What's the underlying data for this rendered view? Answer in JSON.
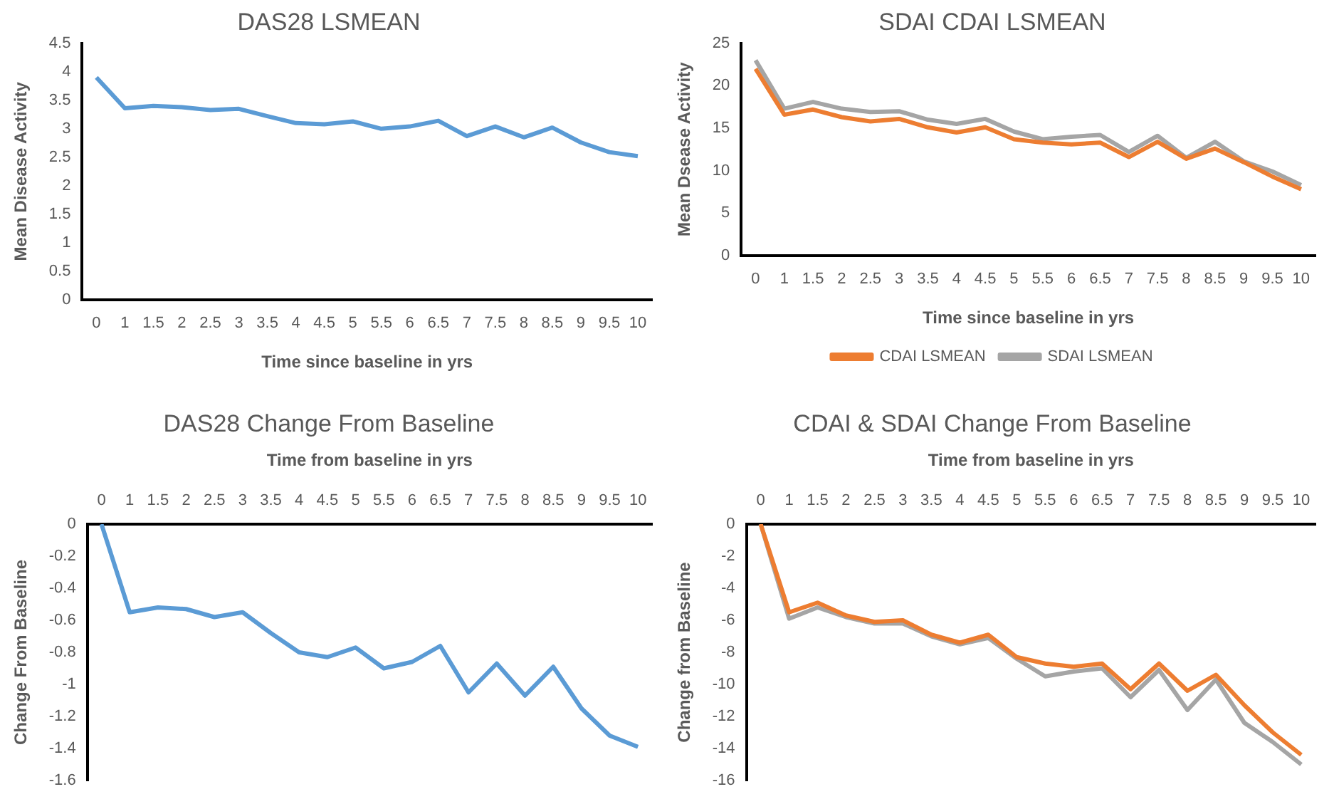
{
  "chart_data": [
    {
      "type": "line",
      "title": "DAS28 LSMEAN",
      "xlabel": "Time since baseline in yrs",
      "ylabel": "Mean Disease Activity",
      "categories": [
        "0",
        "1",
        "1.5",
        "2",
        "2.5",
        "3",
        "3.5",
        "4",
        "4.5",
        "5",
        "5.5",
        "6",
        "6.5",
        "7",
        "7.5",
        "8",
        "8.5",
        "9",
        "9.5",
        "10"
      ],
      "series": [
        {
          "color": "#5b9bd5",
          "values": [
            3.9,
            3.36,
            3.4,
            3.38,
            3.33,
            3.35,
            3.22,
            3.1,
            3.08,
            3.13,
            3.0,
            3.04,
            3.14,
            2.87,
            3.04,
            2.85,
            3.02,
            2.76,
            2.59,
            2.52
          ]
        }
      ],
      "ylim": [
        0,
        4.5
      ],
      "yticks": [
        0,
        0.5,
        1,
        1.5,
        2,
        2.5,
        3,
        3.5,
        4,
        4.5
      ],
      "grid": false,
      "legend": false,
      "marker": "none",
      "line_style": "solid"
    },
    {
      "type": "line",
      "title": "SDAI CDAI LSMEAN",
      "xlabel": "Time since baseline in yrs",
      "ylabel": "Mean Dsease Activity",
      "categories": [
        "0",
        "1",
        "1.5",
        "2",
        "2.5",
        "3",
        "3.5",
        "4",
        "4.5",
        "5",
        "5.5",
        "6",
        "6.5",
        "7",
        "7.5",
        "8",
        "8.5",
        "9",
        "9.5",
        "10"
      ],
      "series": [
        {
          "name": "CDAI LSMEAN",
          "color": "#ed7d31",
          "values": [
            22,
            16.6,
            17.2,
            16.3,
            15.8,
            16.1,
            15.1,
            14.5,
            15.1,
            13.7,
            13.3,
            13.1,
            13.3,
            11.6,
            13.4,
            11.4,
            12.6,
            11.0,
            9.3,
            7.8
          ]
        },
        {
          "name": "SDAI LSMEAN",
          "color": "#a5a5a5",
          "values": [
            23,
            17.3,
            18.1,
            17.3,
            16.9,
            17.0,
            16.0,
            15.5,
            16.1,
            14.6,
            13.7,
            14.0,
            14.2,
            12.2,
            14.1,
            11.5,
            13.4,
            11.1,
            9.9,
            8.3
          ]
        }
      ],
      "ylim": [
        0,
        25
      ],
      "yticks": [
        0,
        5,
        10,
        15,
        20,
        25
      ],
      "grid": false,
      "legend": "bottom",
      "marker": "none",
      "line_style": "solid"
    },
    {
      "type": "line",
      "title": "DAS28 Change From Baseline",
      "xlabel": "Time from baseline in yrs",
      "ylabel": "Change From Baseline",
      "categories": [
        "0",
        "1",
        "1.5",
        "2",
        "2.5",
        "3",
        "3.5",
        "4",
        "4.5",
        "5",
        "5.5",
        "6",
        "6.5",
        "7",
        "7.5",
        "8",
        "8.5",
        "9",
        "9.5",
        "10"
      ],
      "series": [
        {
          "color": "#5b9bd5",
          "values": [
            0,
            -0.55,
            -0.52,
            -0.53,
            -0.58,
            -0.55,
            -0.68,
            -0.8,
            -0.83,
            -0.77,
            -0.9,
            -0.86,
            -0.76,
            -1.05,
            -0.87,
            -1.07,
            -0.89,
            -1.15,
            -1.32,
            -1.39
          ]
        }
      ],
      "ylim": [
        -1.6,
        0
      ],
      "yticks": [
        -1.6,
        -1.4,
        -1.2,
        -1,
        -0.8,
        -0.6,
        -0.4,
        -0.2,
        0
      ],
      "grid": false,
      "legend": false,
      "marker": "none",
      "line_style": "solid"
    },
    {
      "type": "line",
      "title": "CDAI & SDAI Change From Baseline",
      "xlabel": "Time from baseline in yrs",
      "ylabel": "Change from Baseline",
      "categories": [
        "0",
        "1",
        "1.5",
        "2",
        "2.5",
        "3",
        "3.5",
        "4",
        "4.5",
        "5",
        "5.5",
        "6",
        "6.5",
        "7",
        "7.5",
        "8",
        "8.5",
        "9",
        "9.5",
        "10"
      ],
      "series": [
        {
          "color": "#ed7d31",
          "values": [
            0,
            -5.5,
            -4.9,
            -5.7,
            -6.1,
            -6.0,
            -6.9,
            -7.4,
            -6.9,
            -8.3,
            -8.7,
            -8.9,
            -8.7,
            -10.3,
            -8.7,
            -10.4,
            -9.4,
            -11.3,
            -13.0,
            -14.4
          ]
        },
        {
          "color": "#a5a5a5",
          "values": [
            0,
            -5.9,
            -5.2,
            -5.8,
            -6.2,
            -6.2,
            -7.0,
            -7.5,
            -7.1,
            -8.4,
            -9.5,
            -9.2,
            -9.0,
            -10.8,
            -9.1,
            -11.6,
            -9.7,
            -12.4,
            -13.6,
            -15.0
          ]
        }
      ],
      "ylim": [
        -16,
        0
      ],
      "yticks": [
        -16,
        -14,
        -12,
        -10,
        -8,
        -6,
        -4,
        -2,
        0
      ],
      "grid": false,
      "legend": false,
      "marker": "none",
      "line_style": "solid"
    }
  ]
}
